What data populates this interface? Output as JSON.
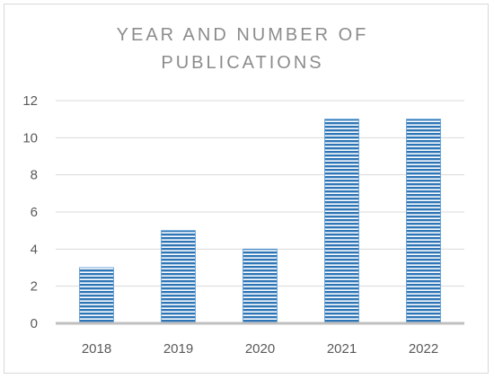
{
  "chart_data": {
    "type": "bar",
    "title": "YEAR AND NUMBER OF PUBLICATIONS",
    "categories": [
      "2018",
      "2019",
      "2020",
      "2021",
      "2022"
    ],
    "values": [
      3,
      5,
      4,
      11,
      11
    ],
    "ylim": [
      0,
      12
    ],
    "yticks": [
      "0",
      "2",
      "4",
      "6",
      "8",
      "10",
      "12"
    ],
    "grid": true,
    "legend": "none",
    "colors": {
      "bar": "#5b9bd5",
      "bar_stripe": "#2e75b6",
      "grid": "#d9d9d9",
      "axis": "#bfbfbf"
    }
  }
}
